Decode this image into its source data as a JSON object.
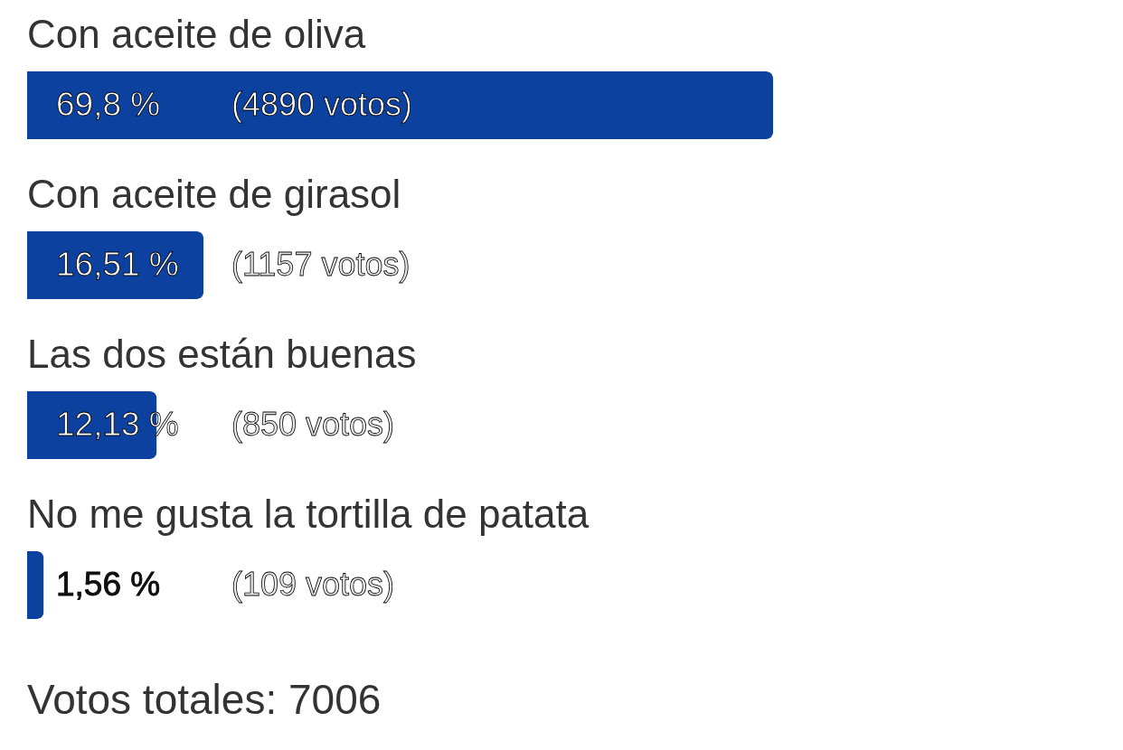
{
  "chart_data": {
    "type": "bar",
    "orientation": "horizontal",
    "categories": [
      "Con aceite de oliva",
      "Con aceite de girasol",
      "Las dos están buenas",
      "No me gusta la tortilla de patata"
    ],
    "values": [
      69.8,
      16.51,
      12.13,
      1.56
    ],
    "value_labels": [
      "69,8 %",
      "16,51 %",
      "12,13 %",
      "1,56 %"
    ],
    "color": "#0c41a0",
    "tick_labels": "y",
    "annotations": [
      "(4890 votos)",
      "(1157 votos)",
      "(850 votos)",
      "(109 votos)",
      "Votos totales: 7006"
    ]
  }
}
